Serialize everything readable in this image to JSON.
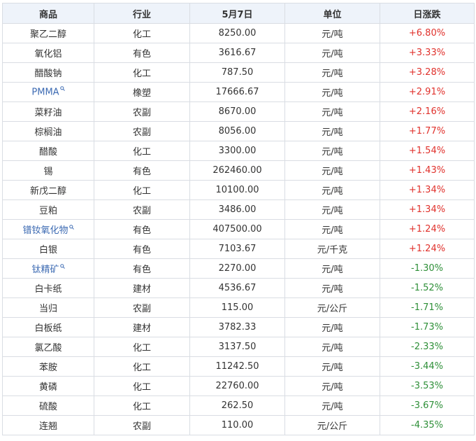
{
  "headers": [
    "商品",
    "行业",
    "5月7日",
    "单位",
    "日涨跌"
  ],
  "colors": {
    "up": "#e0312c",
    "down": "#2e8f38",
    "link": "#3d6bb3",
    "header_bg": "#eef3fa"
  },
  "rows": [
    {
      "name": "聚乙二醇",
      "industry": "化工",
      "price": "8250.00",
      "unit": "元/吨",
      "change": "+6.80%",
      "link": false
    },
    {
      "name": "氧化铝",
      "industry": "有色",
      "price": "3616.67",
      "unit": "元/吨",
      "change": "+3.33%",
      "link": false
    },
    {
      "name": "醋酸钠",
      "industry": "化工",
      "price": "787.50",
      "unit": "元/吨",
      "change": "+3.28%",
      "link": false
    },
    {
      "name": "PMMA",
      "industry": "橡塑",
      "price": "17666.67",
      "unit": "元/吨",
      "change": "+2.91%",
      "link": true
    },
    {
      "name": "菜籽油",
      "industry": "农副",
      "price": "8670.00",
      "unit": "元/吨",
      "change": "+2.16%",
      "link": false
    },
    {
      "name": "棕榈油",
      "industry": "农副",
      "price": "8056.00",
      "unit": "元/吨",
      "change": "+1.77%",
      "link": false
    },
    {
      "name": "醋酸",
      "industry": "化工",
      "price": "3300.00",
      "unit": "元/吨",
      "change": "+1.54%",
      "link": false
    },
    {
      "name": "锡",
      "industry": "有色",
      "price": "262460.00",
      "unit": "元/吨",
      "change": "+1.43%",
      "link": false
    },
    {
      "name": "新戊二醇",
      "industry": "化工",
      "price": "10100.00",
      "unit": "元/吨",
      "change": "+1.34%",
      "link": false
    },
    {
      "name": "豆粕",
      "industry": "农副",
      "price": "3486.00",
      "unit": "元/吨",
      "change": "+1.34%",
      "link": false
    },
    {
      "name": "镨钕氧化物",
      "industry": "有色",
      "price": "407500.00",
      "unit": "元/吨",
      "change": "+1.24%",
      "link": true
    },
    {
      "name": "白银",
      "industry": "有色",
      "price": "7103.67",
      "unit": "元/千克",
      "change": "+1.24%",
      "link": false
    },
    {
      "name": "钛精矿",
      "industry": "有色",
      "price": "2270.00",
      "unit": "元/吨",
      "change": "-1.30%",
      "link": true
    },
    {
      "name": "白卡纸",
      "industry": "建材",
      "price": "4536.67",
      "unit": "元/吨",
      "change": "-1.52%",
      "link": false
    },
    {
      "name": "当归",
      "industry": "农副",
      "price": "115.00",
      "unit": "元/公斤",
      "change": "-1.71%",
      "link": false
    },
    {
      "name": "白板纸",
      "industry": "建材",
      "price": "3782.33",
      "unit": "元/吨",
      "change": "-1.73%",
      "link": false
    },
    {
      "name": "氯乙酸",
      "industry": "化工",
      "price": "3137.50",
      "unit": "元/吨",
      "change": "-2.33%",
      "link": false
    },
    {
      "name": "苯胺",
      "industry": "化工",
      "price": "11242.50",
      "unit": "元/吨",
      "change": "-3.44%",
      "link": false
    },
    {
      "name": "黄磷",
      "industry": "化工",
      "price": "22760.00",
      "unit": "元/吨",
      "change": "-3.53%",
      "link": false
    },
    {
      "name": "硫酸",
      "industry": "化工",
      "price": "262.50",
      "unit": "元/吨",
      "change": "-3.67%",
      "link": false
    },
    {
      "name": "连翘",
      "industry": "农副",
      "price": "110.00",
      "unit": "元/公斤",
      "change": "-4.35%",
      "link": false
    }
  ]
}
